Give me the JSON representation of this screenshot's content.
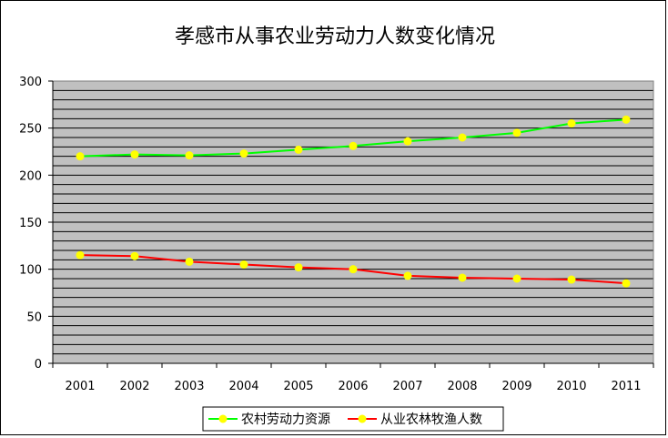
{
  "chart_data": {
    "type": "line",
    "title": "孝感市从事农业劳动力人数变化情况",
    "xlabel": "",
    "ylabel": "",
    "categories": [
      "2001",
      "2002",
      "2003",
      "2004",
      "2005",
      "2006",
      "2007",
      "2008",
      "2009",
      "2010",
      "2011"
    ],
    "ylim": [
      0,
      300
    ],
    "yticks": [
      "0",
      "50",
      "100",
      "150",
      "200",
      "250",
      "300"
    ],
    "grid": true,
    "grid_step": 10,
    "legend_position": "bottom",
    "plot_background": "#c0c0c0",
    "marker_color": "#ffff00",
    "series": [
      {
        "name": "农村劳动力资源",
        "color": "#00ff00",
        "values": [
          220,
          222,
          221,
          223,
          227,
          231,
          236,
          240,
          245,
          255,
          259
        ]
      },
      {
        "name": "从业农林牧渔人数",
        "color": "#ff0000",
        "values": [
          115,
          114,
          108,
          105,
          102,
          100,
          93,
          91,
          90,
          89,
          85
        ]
      }
    ]
  }
}
